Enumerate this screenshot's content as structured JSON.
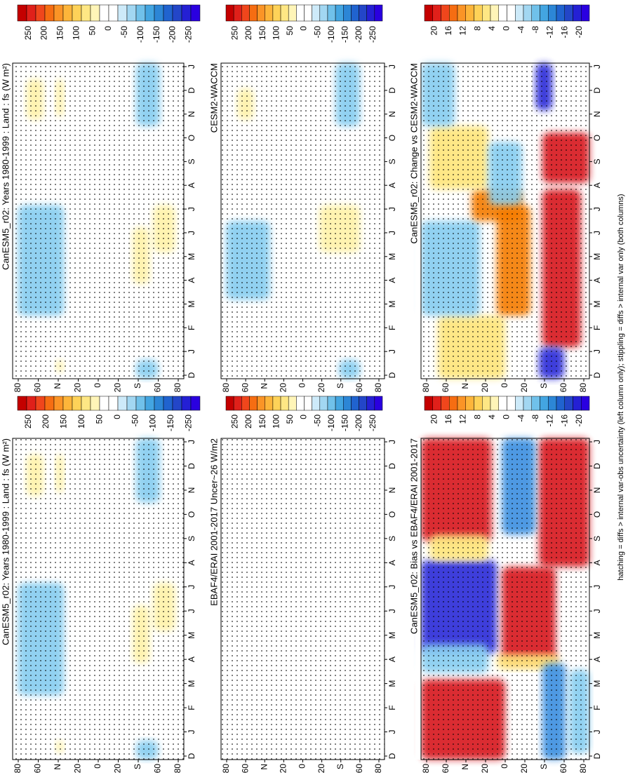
{
  "axes": {
    "lat_labels": [
      "80",
      "60",
      "N",
      "20",
      "0",
      "20",
      "S",
      "60",
      "80"
    ],
    "months": [
      "D",
      "J",
      "F",
      "M",
      "A",
      "M",
      "J",
      "J",
      "A",
      "S",
      "O",
      "N",
      "D",
      "J"
    ]
  },
  "panels": [
    {
      "title": "CanESM5_r02: Years 1980-1999 : Land : fs (W m²)",
      "colorbar_labels": [
        250,
        200,
        150,
        100,
        50,
        0,
        -50,
        -100,
        -150,
        -250
      ]
    },
    {
      "title": "EBAF4/ERAI 2001-2017 Uncer~26 W/m2",
      "colorbar_labels": [
        250,
        200,
        150,
        100,
        50,
        0,
        -50,
        -100,
        -150,
        -200,
        -250
      ]
    },
    {
      "title": "CanESM5_r02: Bias vs EBAF4/ERAI 2001-2017",
      "colorbar_labels": [
        20,
        16,
        12,
        8,
        4,
        0,
        -4,
        -8,
        -12,
        -16,
        -20
      ]
    },
    {
      "title": "CanESM5_r02: Years 1980-1999 : Land : fs (W m²)",
      "colorbar_labels": [
        250,
        200,
        150,
        100,
        50,
        0,
        -50,
        -100,
        -150,
        -200,
        -250
      ]
    },
    {
      "title": "CESM2-WACCM",
      "colorbar_labels": [
        250,
        200,
        150,
        100,
        50,
        0,
        -50,
        -100,
        -150,
        -200,
        -250
      ]
    },
    {
      "title": "CanESM5_r02: Change vs CESM2-WACCM",
      "colorbar_labels": [
        20,
        16,
        12,
        8,
        4,
        0,
        -4,
        -8,
        -12,
        -16,
        -20
      ]
    }
  ],
  "footer": "hatching = diffs > internal var-obs uncertainty (left column only); stippling = diffs > internal var only (both columns)"
}
